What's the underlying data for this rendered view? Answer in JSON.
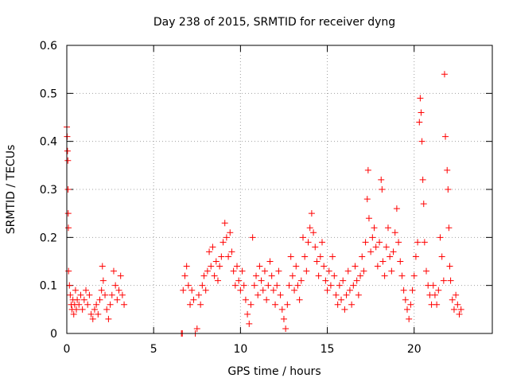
{
  "chart_data": {
    "type": "scatter",
    "title": "Day 238 of 2015, SRMTID for receiver dyng",
    "xlabel": "GPS time / hours",
    "ylabel": "SRMTID / TECUs",
    "xlim": [
      0,
      24.5
    ],
    "ylim": [
      0,
      0.6
    ],
    "xticks": [
      0,
      5,
      10,
      15,
      20
    ],
    "yticks": [
      0,
      0.1,
      0.2,
      0.3,
      0.4,
      0.5,
      0.6
    ],
    "xtick_labels": [
      "0",
      "5",
      "10",
      "15",
      "20"
    ],
    "ytick_labels": [
      "0",
      "0.1",
      "0.2",
      "0.3",
      "0.4",
      "0.5",
      "0.6"
    ],
    "grid": true,
    "marker": "+",
    "color": "#ff0000",
    "series": [
      {
        "name": "SRMTID",
        "points": [
          [
            0.0,
            0.43
          ],
          [
            0.02,
            0.41
          ],
          [
            0.04,
            0.38
          ],
          [
            0.06,
            0.36
          ],
          [
            0.07,
            0.3
          ],
          [
            0.08,
            0.25
          ],
          [
            0.09,
            0.22
          ],
          [
            0.1,
            0.13
          ],
          [
            0.15,
            0.1
          ],
          [
            0.2,
            0.08
          ],
          [
            0.25,
            0.06
          ],
          [
            0.3,
            0.05
          ],
          [
            0.35,
            0.07
          ],
          [
            0.4,
            0.04
          ],
          [
            0.45,
            0.06
          ],
          [
            0.5,
            0.09
          ],
          [
            0.55,
            0.05
          ],
          [
            0.6,
            0.07
          ],
          [
            0.7,
            0.06
          ],
          [
            0.8,
            0.08
          ],
          [
            0.9,
            0.05
          ],
          [
            1.0,
            0.07
          ],
          [
            1.1,
            0.09
          ],
          [
            1.2,
            0.06
          ],
          [
            1.3,
            0.08
          ],
          [
            1.4,
            0.04
          ],
          [
            1.5,
            0.03
          ],
          [
            1.6,
            0.05
          ],
          [
            1.7,
            0.06
          ],
          [
            1.8,
            0.04
          ],
          [
            1.9,
            0.07
          ],
          [
            2.0,
            0.09
          ],
          [
            2.05,
            0.14
          ],
          [
            2.1,
            0.11
          ],
          [
            2.2,
            0.08
          ],
          [
            2.3,
            0.05
          ],
          [
            2.4,
            0.03
          ],
          [
            2.5,
            0.06
          ],
          [
            2.6,
            0.08
          ],
          [
            2.7,
            0.13
          ],
          [
            2.8,
            0.1
          ],
          [
            2.9,
            0.07
          ],
          [
            3.0,
            0.09
          ],
          [
            3.1,
            0.12
          ],
          [
            3.2,
            0.08
          ],
          [
            3.3,
            0.06
          ],
          [
            6.6,
            0.0
          ],
          [
            6.65,
            0.0
          ],
          [
            6.7,
            0.09
          ],
          [
            6.8,
            0.12
          ],
          [
            6.9,
            0.14
          ],
          [
            7.0,
            0.1
          ],
          [
            7.1,
            0.06
          ],
          [
            7.2,
            0.09
          ],
          [
            7.3,
            0.07
          ],
          [
            7.4,
            0.0
          ],
          [
            7.5,
            0.01
          ],
          [
            7.6,
            0.08
          ],
          [
            7.7,
            0.06
          ],
          [
            7.8,
            0.1
          ],
          [
            7.9,
            0.12
          ],
          [
            8.0,
            0.09
          ],
          [
            8.1,
            0.13
          ],
          [
            8.2,
            0.17
          ],
          [
            8.3,
            0.14
          ],
          [
            8.4,
            0.18
          ],
          [
            8.5,
            0.12
          ],
          [
            8.6,
            0.15
          ],
          [
            8.7,
            0.11
          ],
          [
            8.8,
            0.14
          ],
          [
            8.9,
            0.16
          ],
          [
            9.0,
            0.19
          ],
          [
            9.1,
            0.23
          ],
          [
            9.2,
            0.2
          ],
          [
            9.3,
            0.16
          ],
          [
            9.4,
            0.21
          ],
          [
            9.5,
            0.17
          ],
          [
            9.6,
            0.13
          ],
          [
            9.7,
            0.1
          ],
          [
            9.8,
            0.14
          ],
          [
            9.9,
            0.11
          ],
          [
            10.0,
            0.09
          ],
          [
            10.1,
            0.13
          ],
          [
            10.2,
            0.1
          ],
          [
            10.3,
            0.07
          ],
          [
            10.4,
            0.04
          ],
          [
            10.5,
            0.02
          ],
          [
            10.6,
            0.06
          ],
          [
            10.7,
            0.2
          ],
          [
            10.8,
            0.1
          ],
          [
            10.9,
            0.12
          ],
          [
            11.0,
            0.08
          ],
          [
            11.1,
            0.14
          ],
          [
            11.2,
            0.11
          ],
          [
            11.3,
            0.09
          ],
          [
            11.4,
            0.13
          ],
          [
            11.5,
            0.07
          ],
          [
            11.6,
            0.1
          ],
          [
            11.7,
            0.15
          ],
          [
            11.8,
            0.12
          ],
          [
            11.9,
            0.09
          ],
          [
            12.0,
            0.06
          ],
          [
            12.1,
            0.1
          ],
          [
            12.2,
            0.13
          ],
          [
            12.3,
            0.08
          ],
          [
            12.4,
            0.05
          ],
          [
            12.5,
            0.03
          ],
          [
            12.6,
            0.01
          ],
          [
            12.7,
            0.06
          ],
          [
            12.8,
            0.1
          ],
          [
            12.9,
            0.16
          ],
          [
            13.0,
            0.12
          ],
          [
            13.1,
            0.09
          ],
          [
            13.2,
            0.14
          ],
          [
            13.3,
            0.1
          ],
          [
            13.4,
            0.07
          ],
          [
            13.5,
            0.11
          ],
          [
            13.6,
            0.2
          ],
          [
            13.7,
            0.16
          ],
          [
            13.8,
            0.13
          ],
          [
            13.9,
            0.19
          ],
          [
            14.0,
            0.22
          ],
          [
            14.1,
            0.25
          ],
          [
            14.2,
            0.21
          ],
          [
            14.3,
            0.18
          ],
          [
            14.4,
            0.15
          ],
          [
            14.5,
            0.12
          ],
          [
            14.6,
            0.16
          ],
          [
            14.7,
            0.19
          ],
          [
            14.8,
            0.14
          ],
          [
            14.9,
            0.11
          ],
          [
            15.0,
            0.09
          ],
          [
            15.1,
            0.13
          ],
          [
            15.2,
            0.1
          ],
          [
            15.3,
            0.16
          ],
          [
            15.4,
            0.12
          ],
          [
            15.5,
            0.08
          ],
          [
            15.6,
            0.06
          ],
          [
            15.7,
            0.1
          ],
          [
            15.8,
            0.07
          ],
          [
            15.9,
            0.11
          ],
          [
            16.0,
            0.05
          ],
          [
            16.1,
            0.08
          ],
          [
            16.2,
            0.13
          ],
          [
            16.3,
            0.09
          ],
          [
            16.4,
            0.06
          ],
          [
            16.5,
            0.1
          ],
          [
            16.6,
            0.14
          ],
          [
            16.7,
            0.11
          ],
          [
            16.8,
            0.08
          ],
          [
            16.9,
            0.12
          ],
          [
            17.0,
            0.16
          ],
          [
            17.1,
            0.13
          ],
          [
            17.2,
            0.19
          ],
          [
            17.3,
            0.28
          ],
          [
            17.35,
            0.34
          ],
          [
            17.4,
            0.24
          ],
          [
            17.5,
            0.17
          ],
          [
            17.6,
            0.2
          ],
          [
            17.7,
            0.22
          ],
          [
            17.8,
            0.18
          ],
          [
            17.9,
            0.14
          ],
          [
            18.0,
            0.19
          ],
          [
            18.1,
            0.32
          ],
          [
            18.15,
            0.3
          ],
          [
            18.2,
            0.15
          ],
          [
            18.3,
            0.12
          ],
          [
            18.4,
            0.18
          ],
          [
            18.5,
            0.22
          ],
          [
            18.6,
            0.16
          ],
          [
            18.7,
            0.13
          ],
          [
            18.8,
            0.17
          ],
          [
            18.9,
            0.21
          ],
          [
            19.0,
            0.26
          ],
          [
            19.1,
            0.19
          ],
          [
            19.2,
            0.15
          ],
          [
            19.3,
            0.12
          ],
          [
            19.4,
            0.09
          ],
          [
            19.5,
            0.07
          ],
          [
            19.6,
            0.05
          ],
          [
            19.7,
            0.03
          ],
          [
            19.8,
            0.06
          ],
          [
            19.9,
            0.09
          ],
          [
            20.0,
            0.12
          ],
          [
            20.1,
            0.16
          ],
          [
            20.2,
            0.19
          ],
          [
            20.3,
            0.44
          ],
          [
            20.35,
            0.49
          ],
          [
            20.4,
            0.46
          ],
          [
            20.45,
            0.4
          ],
          [
            20.5,
            0.32
          ],
          [
            20.55,
            0.27
          ],
          [
            20.6,
            0.19
          ],
          [
            20.7,
            0.13
          ],
          [
            20.8,
            0.1
          ],
          [
            20.9,
            0.08
          ],
          [
            21.0,
            0.06
          ],
          [
            21.1,
            0.1
          ],
          [
            21.2,
            0.08
          ],
          [
            21.3,
            0.06
          ],
          [
            21.4,
            0.09
          ],
          [
            21.5,
            0.2
          ],
          [
            21.6,
            0.16
          ],
          [
            21.7,
            0.11
          ],
          [
            21.75,
            0.54
          ],
          [
            21.8,
            0.41
          ],
          [
            21.9,
            0.34
          ],
          [
            21.95,
            0.3
          ],
          [
            22.0,
            0.22
          ],
          [
            22.05,
            0.14
          ],
          [
            22.1,
            0.11
          ],
          [
            22.2,
            0.07
          ],
          [
            22.3,
            0.05
          ],
          [
            22.4,
            0.08
          ],
          [
            22.5,
            0.06
          ],
          [
            22.6,
            0.04
          ],
          [
            22.7,
            0.05
          ]
        ]
      }
    ]
  }
}
